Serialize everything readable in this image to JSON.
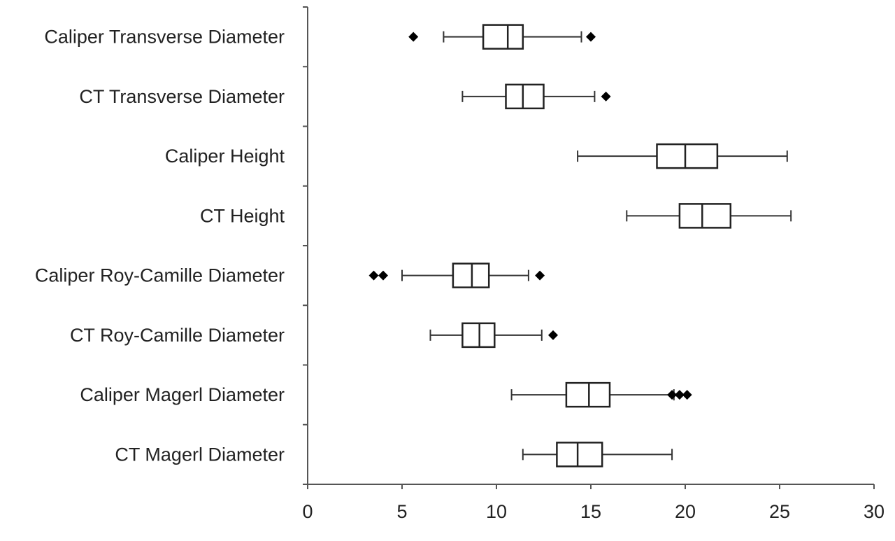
{
  "chart_data": {
    "type": "boxplot",
    "orientation": "horizontal",
    "title": "",
    "xlabel": "",
    "ylabel": "",
    "xlim": [
      0,
      30
    ],
    "x_ticks": [
      0,
      5,
      10,
      15,
      20,
      25,
      30
    ],
    "x_tick_labels": [
      "0",
      "5",
      "10",
      "15",
      "20",
      "25",
      "30"
    ],
    "grid": false,
    "legend": "none",
    "series": [
      {
        "category": "Caliper Transverse Diameter",
        "whisker_low": 7.2,
        "q1": 9.3,
        "median": 10.6,
        "q3": 11.4,
        "whisker_high": 14.5,
        "outliers": [
          5.6,
          15.0
        ]
      },
      {
        "category": "CT Transverse Diameter",
        "whisker_low": 8.2,
        "q1": 10.5,
        "median": 11.4,
        "q3": 12.5,
        "whisker_high": 15.2,
        "outliers": [
          15.8
        ]
      },
      {
        "category": "Caliper Height",
        "whisker_low": 14.3,
        "q1": 18.5,
        "median": 20.0,
        "q3": 21.7,
        "whisker_high": 25.4,
        "outliers": []
      },
      {
        "category": "CT Height",
        "whisker_low": 16.9,
        "q1": 19.7,
        "median": 20.9,
        "q3": 22.4,
        "whisker_high": 25.6,
        "outliers": []
      },
      {
        "category": "Caliper Roy-Camille Diameter",
        "whisker_low": 5.0,
        "q1": 7.7,
        "median": 8.7,
        "q3": 9.6,
        "whisker_high": 11.7,
        "outliers": [
          3.5,
          4.0,
          12.3
        ]
      },
      {
        "category": "CT Roy-Camille Diameter",
        "whisker_low": 6.5,
        "q1": 8.2,
        "median": 9.1,
        "q3": 9.9,
        "whisker_high": 12.4,
        "outliers": [
          13.0
        ]
      },
      {
        "category": "Caliper Magerl Diameter",
        "whisker_low": 10.8,
        "q1": 13.7,
        "median": 14.9,
        "q3": 16.0,
        "whisker_high": 19.4,
        "outliers": [
          19.3,
          19.7,
          20.1
        ]
      },
      {
        "category": "CT Magerl Diameter",
        "whisker_low": 11.4,
        "q1": 13.2,
        "median": 14.3,
        "q3": 15.6,
        "whisker_high": 19.3,
        "outliers": []
      }
    ]
  },
  "style": {
    "axis_color": "#555555",
    "box_stroke": "#222222",
    "outlier_color": "#000000"
  }
}
